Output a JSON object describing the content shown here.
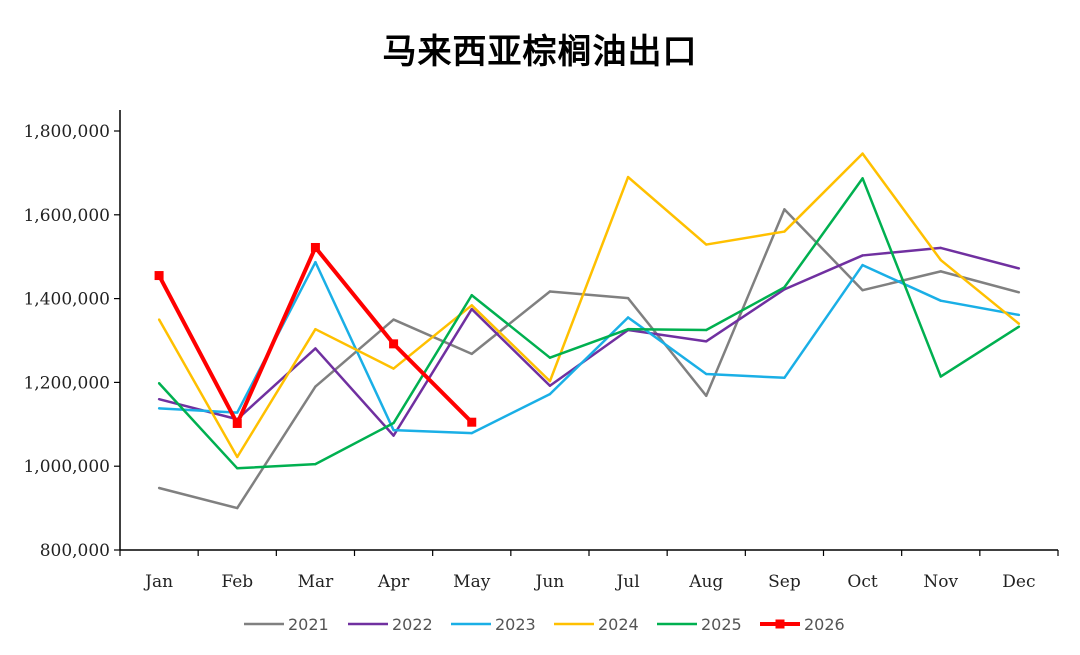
{
  "chart_data": {
    "type": "line",
    "title": "马来西亚棕榈油出口",
    "categories": [
      "Jan",
      "Feb",
      "Mar",
      "Apr",
      "May",
      "Jun",
      "Jul",
      "Aug",
      "Sep",
      "Oct",
      "Nov",
      "Dec"
    ],
    "ylim": [
      800000,
      1850000
    ],
    "yticks": [
      800000,
      1000000,
      1200000,
      1400000,
      1600000,
      1800000
    ],
    "ytick_labels": [
      "800,000",
      "1,000,000",
      "1,200,000",
      "1,400,000",
      "1,600,000",
      "1,800,000"
    ],
    "grid": false,
    "legend_position": "bottom",
    "series": [
      {
        "name": "2021",
        "color": "#808080",
        "markers": false,
        "values": [
          948000,
          900000,
          1190000,
          1350000,
          1268000,
          1417000,
          1401000,
          1168000,
          1613000,
          1420000,
          1465000,
          1415000
        ]
      },
      {
        "name": "2022",
        "color": "#7030A0",
        "markers": false,
        "values": [
          1160000,
          1112000,
          1281000,
          1073000,
          1375000,
          1192000,
          1325000,
          1298000,
          1422000,
          1503000,
          1521000,
          1472000
        ]
      },
      {
        "name": "2023",
        "color": "#1AAFE6",
        "markers": false,
        "values": [
          1138000,
          1128000,
          1487000,
          1086000,
          1079000,
          1172000,
          1355000,
          1220000,
          1211000,
          1480000,
          1395000,
          1361000
        ]
      },
      {
        "name": "2024",
        "color": "#FFC000",
        "markers": false,
        "values": [
          1350000,
          1022000,
          1327000,
          1233000,
          1384000,
          1203000,
          1690000,
          1529000,
          1560000,
          1746000,
          1492000,
          1340000
        ]
      },
      {
        "name": "2025",
        "color": "#00B050",
        "markers": false,
        "values": [
          1198000,
          995000,
          1005000,
          1103000,
          1408000,
          1259000,
          1327000,
          1325000,
          1427000,
          1687000,
          1214000,
          1333000
        ]
      },
      {
        "name": "2026",
        "color": "#FF0000",
        "markers": true,
        "values": [
          1455000,
          1102000,
          1522000,
          1292000,
          1105000,
          null,
          null,
          null,
          null,
          null,
          null,
          null
        ]
      }
    ]
  }
}
